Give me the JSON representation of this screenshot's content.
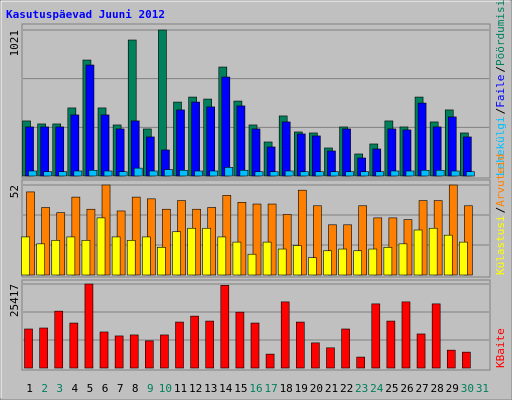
{
  "chart_data": [
    {
      "type": "bar",
      "title": "Kasutuspäevad Juuni 2012",
      "ylim": [
        0,
        1021
      ],
      "yticks": [
        1021
      ],
      "grid_divisions": 3,
      "separator": "/",
      "series": [
        {
          "name": "Pöördumisi",
          "color": "#00805c",
          "values": [
            385,
            364,
            364,
            476,
            811,
            476,
            357,
            951,
            329,
            1021,
            517,
            552,
            538,
            762,
            524,
            357,
            238,
            420,
            308,
            301,
            196,
            343,
            154,
            224,
            385,
            343,
            552,
            378,
            462,
            301,
            null
          ]
        },
        {
          "name": "Faile",
          "color": "#0000ff",
          "values": [
            343,
            343,
            343,
            427,
            776,
            427,
            329,
            385,
            273,
            182,
            462,
            517,
            483,
            692,
            490,
            329,
            203,
            378,
            294,
            280,
            175,
            329,
            126,
            189,
            329,
            322,
            510,
            343,
            413,
            273,
            null
          ]
        },
        {
          "name": "Lehekülgi",
          "color": "#00c0ff",
          "values": [
            35,
            30,
            30,
            35,
            40,
            35,
            30,
            55,
            35,
            45,
            40,
            35,
            35,
            60,
            40,
            30,
            30,
            35,
            30,
            30,
            30,
            30,
            30,
            30,
            35,
            35,
            40,
            40,
            35,
            30,
            null
          ]
        }
      ]
    },
    {
      "type": "bar",
      "ylim": [
        0,
        52
      ],
      "yticks": [
        52
      ],
      "grid_divisions": 3,
      "series": [
        {
          "name": "Arvuteid",
          "color": "#ff8000",
          "values": [
            48,
            39,
            36,
            45,
            38,
            52,
            37,
            45,
            44,
            38,
            43,
            38,
            39,
            46,
            42,
            41,
            41,
            35,
            49,
            40,
            29,
            29,
            40,
            33,
            33,
            32,
            43,
            43,
            52,
            40,
            null
          ]
        },
        {
          "name": "Külastusi",
          "color": "#ffff00",
          "values": [
            22,
            18,
            20,
            22,
            20,
            33,
            22,
            20,
            22,
            16,
            25,
            27,
            27,
            22,
            19,
            12,
            19,
            15,
            17,
            10,
            14,
            15,
            14,
            15,
            16,
            18,
            26,
            27,
            23,
            19,
            null
          ]
        }
      ]
    },
    {
      "type": "bar",
      "ylim": [
        0,
        25417
      ],
      "yticks": [
        25417
      ],
      "grid_divisions": 3,
      "categories": [
        "1",
        "2",
        "3",
        "4",
        "5",
        "6",
        "7",
        "8",
        "9",
        "10",
        "11",
        "12",
        "13",
        "14",
        "15",
        "16",
        "17",
        "18",
        "19",
        "20",
        "21",
        "22",
        "23",
        "24",
        "25",
        "26",
        "27",
        "28",
        "29",
        "30",
        "31"
      ],
      "category_colors": [
        "#000000",
        "#00805c",
        "#00805c",
        "#000000",
        "#000000",
        "#000000",
        "#000000",
        "#000000",
        "#00805c",
        "#00805c",
        "#000000",
        "#000000",
        "#000000",
        "#000000",
        "#000000",
        "#00805c",
        "#00805c",
        "#000000",
        "#000000",
        "#000000",
        "#000000",
        "#000000",
        "#00805c",
        "#00805c",
        "#000000",
        "#000000",
        "#000000",
        "#000000",
        "#000000",
        "#00805c",
        "#00805c"
      ],
      "series": [
        {
          "name": "KBaite",
          "color": "#ff0000",
          "values": [
            11800,
            12100,
            17200,
            13600,
            25417,
            10900,
            9700,
            10000,
            8200,
            10000,
            13900,
            15700,
            14200,
            25000,
            16900,
            13600,
            4200,
            20000,
            13900,
            7600,
            6100,
            11800,
            3300,
            19400,
            14200,
            20000,
            10300,
            19400,
            5400,
            4800,
            null
          ]
        }
      ]
    }
  ]
}
